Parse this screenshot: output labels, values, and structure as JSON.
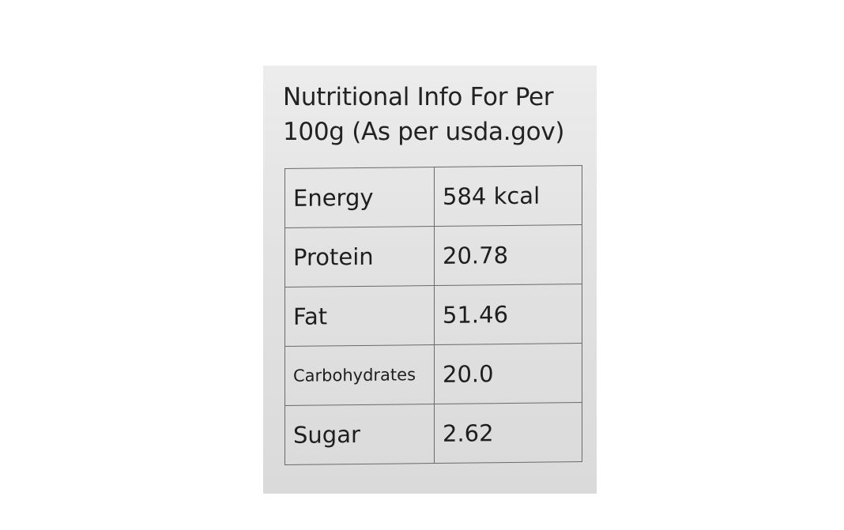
{
  "label": {
    "title_line1": "Nutritional Info For Per",
    "title_line2": "100g (As per usda.gov)",
    "rows": [
      {
        "nutrient": "Energy",
        "value": "584 kcal"
      },
      {
        "nutrient": "Protein",
        "value": "20.78"
      },
      {
        "nutrient": "Fat",
        "value": "51.46"
      },
      {
        "nutrient": "Carbohydrates",
        "value": "20.0"
      },
      {
        "nutrient": "Sugar",
        "value": "2.62"
      }
    ]
  }
}
